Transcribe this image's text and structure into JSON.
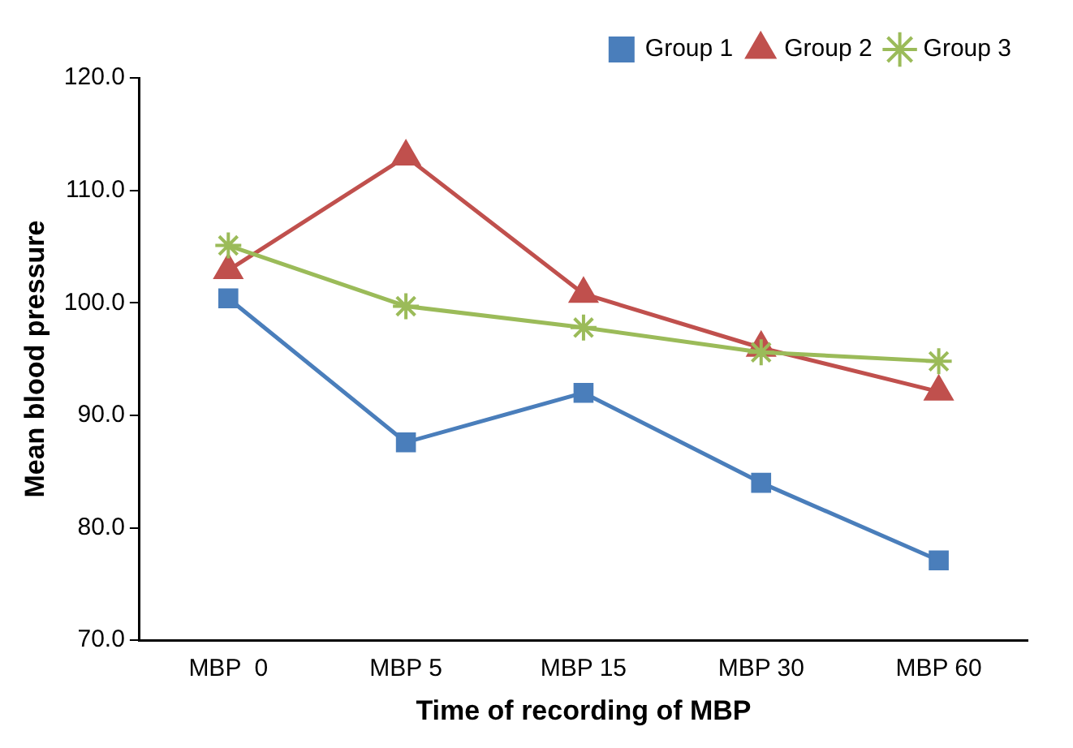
{
  "chart_data": {
    "type": "line",
    "xlabel": "Time of recording of MBP",
    "ylabel": "Mean blood pressure",
    "categories": [
      "MBP  0",
      "MBP 5",
      "MBP 15",
      "MBP 30",
      "MBP 60"
    ],
    "series": [
      {
        "name": "Group 1",
        "color": "#4a7ebb",
        "marker": "square",
        "values": [
          100.4,
          87.6,
          92.0,
          84.0,
          77.1
        ]
      },
      {
        "name": "Group 2",
        "color": "#c0504d",
        "marker": "triangle",
        "values": [
          102.9,
          113.0,
          100.8,
          96.0,
          92.1
        ]
      },
      {
        "name": "Group 3",
        "color": "#9bbb59",
        "marker": "cross",
        "values": [
          105.1,
          99.7,
          97.8,
          95.6,
          94.8
        ]
      }
    ],
    "ylim": [
      70,
      120
    ],
    "yticks": [
      {
        "value": 70,
        "label": "70.0"
      },
      {
        "value": 80,
        "label": "80.0"
      },
      {
        "value": 90,
        "label": "90.0"
      },
      {
        "value": 100,
        "label": "100.0"
      },
      {
        "value": 110,
        "label": "110.0"
      },
      {
        "value": 120,
        "label": "120.0"
      }
    ],
    "grid": false,
    "legend": "top right",
    "line_style": "solid"
  }
}
